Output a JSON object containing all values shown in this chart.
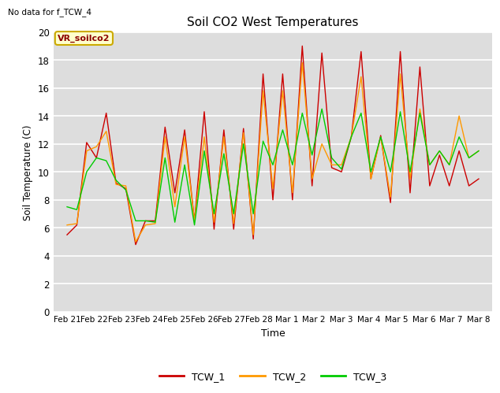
{
  "title": "Soil CO2 West Temperatures",
  "xlabel": "Time",
  "ylabel": "Soil Temperature (C)",
  "annotation_text": "No data for f_TCW_4",
  "legend_box_label": "VR_soilco2",
  "ylim": [
    0,
    20
  ],
  "yticks": [
    0,
    2,
    4,
    6,
    8,
    10,
    12,
    14,
    16,
    18,
    20
  ],
  "x_tick_labels": [
    "Feb 21",
    "Feb 22",
    "Feb 23",
    "Feb 24",
    "Feb 25",
    "Feb 26",
    "Feb 27",
    "Feb 28",
    "Mar 1",
    "Mar 2",
    "Mar 3",
    "Mar 4",
    "Mar 5",
    "Mar 6",
    "Mar 7",
    "Mar 8"
  ],
  "color_TCW1": "#cc0000",
  "color_TCW2": "#ff9900",
  "color_TCW3": "#00cc00",
  "bg_color": "#dddddd",
  "fig_color": "#ffffff",
  "legend_entries": [
    "TCW_1",
    "TCW_2",
    "TCW_3"
  ],
  "TCW1": [
    5.5,
    6.2,
    12.1,
    11.0,
    14.2,
    9.2,
    8.8,
    4.8,
    6.5,
    6.5,
    13.2,
    8.5,
    13.0,
    6.5,
    14.3,
    5.9,
    13.0,
    5.9,
    13.1,
    5.2,
    17.0,
    8.0,
    17.0,
    8.0,
    19.0,
    9.0,
    18.5,
    10.3,
    10.0,
    12.5,
    18.6,
    9.5,
    12.6,
    7.8,
    18.6,
    8.5,
    17.5,
    9.0,
    11.2,
    9.0,
    11.5,
    9.0,
    9.5
  ],
  "TCW2": [
    6.2,
    6.3,
    11.5,
    11.8,
    12.9,
    9.1,
    9.0,
    5.0,
    6.2,
    6.3,
    12.5,
    7.5,
    12.5,
    6.5,
    12.5,
    6.4,
    12.5,
    6.3,
    12.8,
    5.5,
    15.8,
    8.8,
    15.8,
    8.5,
    17.8,
    9.5,
    12.0,
    10.5,
    10.5,
    12.5,
    16.8,
    9.5,
    12.5,
    8.2,
    17.0,
    9.5,
    14.5,
    10.5,
    11.5,
    10.5,
    14.0,
    11.0,
    11.5
  ],
  "TCW3": [
    7.5,
    7.3,
    10.0,
    11.0,
    10.8,
    9.4,
    8.7,
    6.5,
    6.5,
    6.4,
    11.0,
    6.4,
    10.5,
    6.2,
    11.5,
    7.0,
    11.3,
    7.0,
    12.0,
    7.0,
    12.2,
    10.5,
    13.0,
    10.5,
    14.2,
    11.2,
    14.5,
    11.0,
    10.2,
    12.5,
    14.2,
    10.0,
    12.5,
    10.0,
    14.3,
    10.0,
    14.2,
    10.5,
    11.5,
    10.5,
    12.5,
    11.0,
    11.5
  ]
}
